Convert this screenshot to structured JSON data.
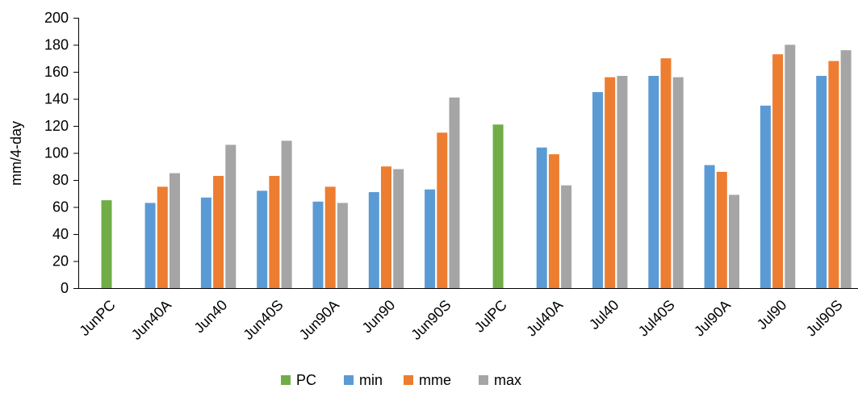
{
  "chart_data": {
    "type": "bar",
    "title": "",
    "xlabel": "",
    "ylabel": "mm/4-day",
    "ylim": [
      0,
      200
    ],
    "yticks": [
      0,
      20,
      40,
      60,
      80,
      100,
      120,
      140,
      160,
      180,
      200
    ],
    "grid": false,
    "legend_position": "bottom",
    "categories": [
      "JunPC",
      "Jun40A",
      "Jun40",
      "Jun40S",
      "Jun90A",
      "Jun90",
      "Jun90S",
      "JulPC",
      "Jul40A",
      "Jul40",
      "Jul40S",
      "Jul90A",
      "Jul90",
      "Jul90S"
    ],
    "series": [
      {
        "name": "PC",
        "color": "#70ad47",
        "values": [
          65,
          null,
          null,
          null,
          null,
          null,
          null,
          121,
          null,
          null,
          null,
          null,
          null,
          null
        ]
      },
      {
        "name": "min",
        "color": "#5b9bd5",
        "values": [
          null,
          63,
          67,
          72,
          64,
          71,
          73,
          null,
          104,
          145,
          157,
          91,
          135,
          157
        ]
      },
      {
        "name": "mme",
        "color": "#ed7d31",
        "values": [
          null,
          75,
          83,
          83,
          75,
          90,
          115,
          null,
          99,
          156,
          170,
          86,
          173,
          168
        ]
      },
      {
        "name": "max",
        "color": "#a5a5a5",
        "values": [
          null,
          85,
          106,
          109,
          63,
          88,
          141,
          null,
          76,
          157,
          156,
          69,
          180,
          176
        ]
      }
    ]
  }
}
